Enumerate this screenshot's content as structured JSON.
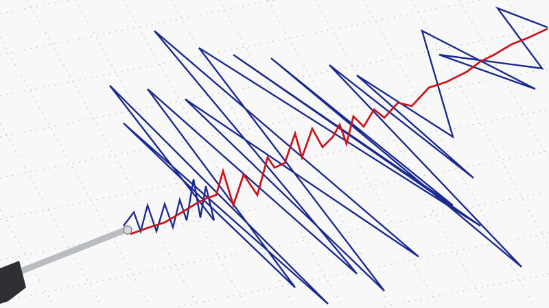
{
  "scene": {
    "subject": "seismograph",
    "colors": {
      "background": "#f8f8f8",
      "grid": "#c9c9c9",
      "trace_blue": "#1b2a8f",
      "trace_red": "#c8161d",
      "stylus_rod": "#b9bcc0",
      "stylus_body": "#2d2f33"
    }
  }
}
